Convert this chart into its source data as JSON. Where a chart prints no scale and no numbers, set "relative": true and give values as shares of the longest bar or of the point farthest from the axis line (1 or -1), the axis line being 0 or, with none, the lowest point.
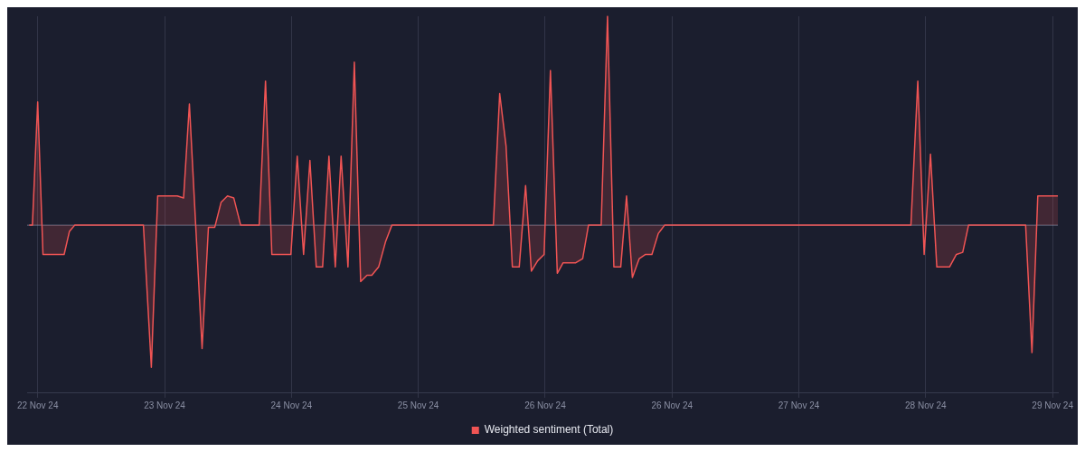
{
  "chart_data": {
    "type": "area",
    "relative": true,
    "x": [
      "--11-21T22:24",
      "--11-21T23:00",
      "--11-22T00:00",
      "--11-22T01:00",
      "--11-22T05:00",
      "--11-22T06:00",
      "--11-22T07:00",
      "--11-22T20:00",
      "--11-22T21:30",
      "--11-22T22:42",
      "--11-23T02:24",
      "--11-23T03:36",
      "--11-23T04:42",
      "--11-23T07:06",
      "--11-23T08:18",
      "--11-23T09:30",
      "--11-23T10:42",
      "--11-23T11:54",
      "--11-23T13:06",
      "--11-23T14:24",
      "--11-23T17:54",
      "--11-23T19:06",
      "--11-23T20:18",
      "--11-23T23:54",
      "--11-24T01:06",
      "--11-24T02:18",
      "--11-24T03:30",
      "--11-24T04:42",
      "--11-24T05:54",
      "--11-24T07:06",
      "--11-24T08:18",
      "--11-24T09:24",
      "--11-24T10:42",
      "--11-24T11:54",
      "--11-24T13:06",
      "--11-24T14:18",
      "--11-24T15:12",
      "--11-24T16:30",
      "--11-24T17:48",
      "--11-24T19:00",
      "--11-25T14:12",
      "--11-25T15:24",
      "--11-25T16:36",
      "--11-25T17:48",
      "--11-25T19:06",
      "--11-25T20:18",
      "--11-25T21:24",
      "--11-25T22:36",
      "--11-25T23:48",
      "--11-26T01:00",
      "--11-26T02:18",
      "--11-26T03:24",
      "--11-26T05:48",
      "--11-26T07:06",
      "--11-26T08:12",
      "--11-26T10:36",
      "--11-26T11:48",
      "--11-26T13:00",
      "--11-26T14:18",
      "--11-26T15:24",
      "--11-26T16:30",
      "--11-26T17:48",
      "--11-26T19:00",
      "--11-26T20:12",
      "--11-26T21:24",
      "--11-26T22:36",
      "--11-28T21:12",
      "--11-28T22:30",
      "--11-28T23:42",
      "--11-29T00:54",
      "--11-29T02:06",
      "--11-29T04:30",
      "--11-29T05:48",
      "--11-29T07:00",
      "--11-29T08:06",
      "--11-29T18:54",
      "--11-29T20:06",
      "--11-29T21:12",
      "--11-30T01:00"
    ],
    "series": [
      {
        "name": "Weighted sentiment (Total)",
        "color": "#f05454",
        "values": [
          0,
          0,
          0.59,
          -0.14,
          -0.14,
          -0.03,
          0,
          0,
          -0.68,
          0.14,
          0.14,
          0.13,
          0.58,
          -0.59,
          -0.01,
          -0.01,
          0.11,
          0.14,
          0.13,
          0,
          0,
          0.69,
          -0.14,
          -0.14,
          0.33,
          -0.14,
          0.31,
          -0.2,
          -0.2,
          0.33,
          -0.2,
          0.33,
          -0.2,
          0.78,
          -0.27,
          -0.24,
          -0.24,
          -0.2,
          -0.08,
          0,
          0,
          0.63,
          0.38,
          -0.2,
          -0.2,
          0.19,
          -0.22,
          -0.17,
          -0.14,
          0.74,
          -0.23,
          -0.18,
          -0.18,
          -0.16,
          0,
          0,
          1,
          -0.2,
          -0.2,
          0.14,
          -0.25,
          -0.16,
          -0.14,
          -0.14,
          -0.04,
          0,
          0,
          0.69,
          -0.14,
          0.34,
          -0.2,
          -0.2,
          -0.14,
          -0.13,
          0,
          0,
          -0.61,
          0.14,
          0.14
        ]
      }
    ],
    "xlim": [
      "--11-21T22:00",
      "--11-30T01:00"
    ],
    "xticks": [
      {
        "value": "--11-22",
        "label": "22 Nov 24"
      },
      {
        "value": "--11-23",
        "label": "23 Nov 24"
      },
      {
        "value": "--11-24",
        "label": "24 Nov 24"
      },
      {
        "value": "--11-25",
        "label": "25 Nov 24"
      },
      {
        "value": "--11-26",
        "label": "26 Nov 24"
      },
      {
        "value": "--11-27",
        "label": "26 Nov 24"
      },
      {
        "value": "--11-28",
        "label": "27 Nov 24"
      },
      {
        "value": "--11-29",
        "label": "28 Nov 24"
      },
      {
        "value": "--11-30",
        "label": "29 Nov 24"
      }
    ],
    "grid": "x",
    "legend": "bottom",
    "tick_labels": "x"
  }
}
